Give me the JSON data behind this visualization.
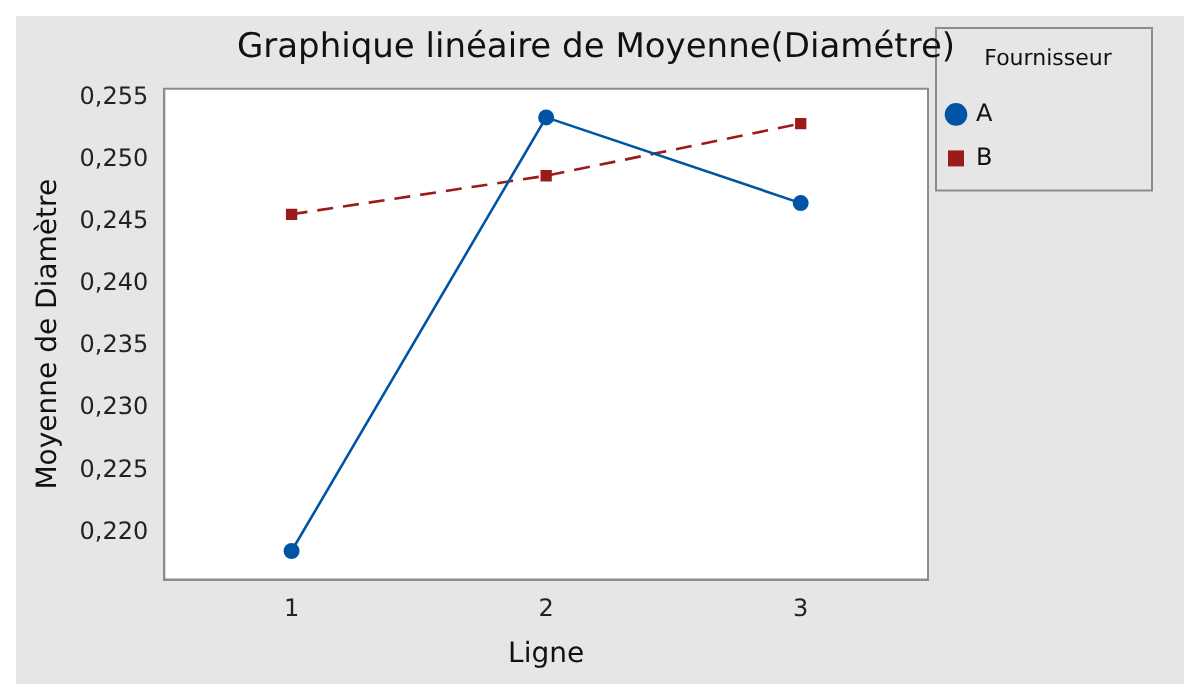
{
  "chart_data": {
    "type": "line",
    "title": "Graphique linéaire de Moyenne(Diamétre)",
    "xlabel": "Ligne",
    "ylabel": "Moyenne de Diamètre",
    "legend_title": "Fournisseur",
    "categories": [
      "1",
      "2",
      "3"
    ],
    "series": [
      {
        "name": "A",
        "color": "#0054a6",
        "values": [
          0.2185,
          0.2534,
          0.2465
        ],
        "marker": "circle",
        "line_style": "solid"
      },
      {
        "name": "B",
        "color": "#9b1b1b",
        "values": [
          0.2456,
          0.2487,
          0.2529
        ],
        "marker": "square",
        "line_style": "dashed"
      }
    ],
    "ylim": [
      0.2162,
      0.2557
    ],
    "yticks": [
      {
        "value": 0.22,
        "label": "0,220"
      },
      {
        "value": 0.225,
        "label": "0,225"
      },
      {
        "value": 0.23,
        "label": "0,230"
      },
      {
        "value": 0.235,
        "label": "0,235"
      },
      {
        "value": 0.24,
        "label": "0,240"
      },
      {
        "value": 0.245,
        "label": "0,245"
      },
      {
        "value": 0.25,
        "label": "0,250"
      },
      {
        "value": 0.255,
        "label": "0,255"
      }
    ],
    "grid": false,
    "legend": "right"
  }
}
